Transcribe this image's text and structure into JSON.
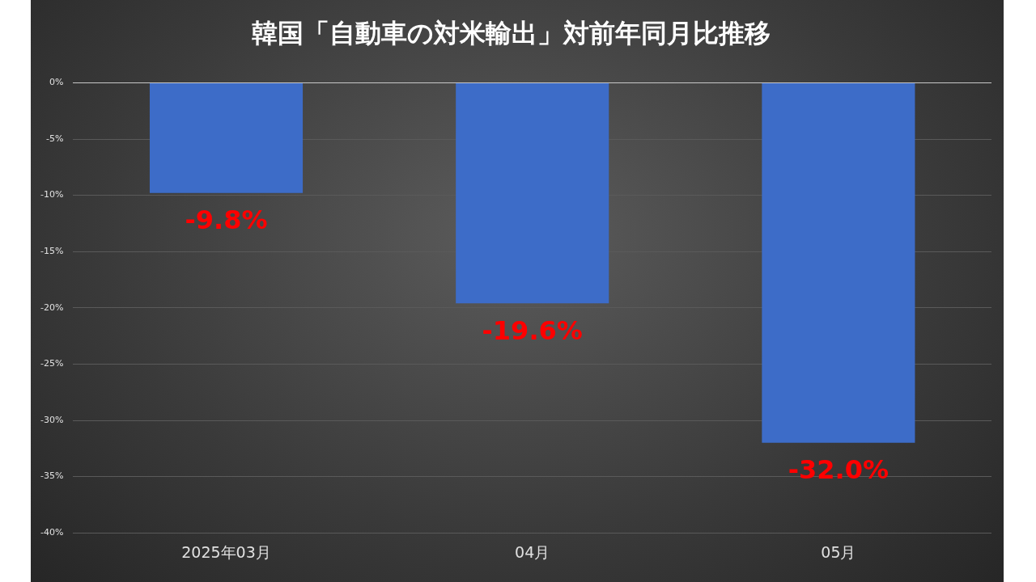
{
  "chart_data": {
    "type": "bar",
    "title": "韓国「自動車の対米輸出」対前年同月比推移",
    "categories": [
      "2025年03月",
      "04月",
      "05月"
    ],
    "values": [
      -9.8,
      -19.6,
      -32.0
    ],
    "value_labels": [
      "-9.8%",
      "-19.6%",
      "-32.0%"
    ],
    "color": "#3d6cc8",
    "ylim": [
      -40,
      0
    ],
    "yticks": [
      {
        "value": 0,
        "label": "0%"
      },
      {
        "value": -5,
        "label": "-5%"
      },
      {
        "value": -10,
        "label": "-10%"
      },
      {
        "value": -15,
        "label": "-15%"
      },
      {
        "value": -20,
        "label": "-20%"
      },
      {
        "value": -25,
        "label": "-25%"
      },
      {
        "value": -30,
        "label": "-30%"
      },
      {
        "value": -35,
        "label": "-35%"
      },
      {
        "value": -40,
        "label": "-40%"
      }
    ],
    "grid": "y",
    "legend": false
  }
}
